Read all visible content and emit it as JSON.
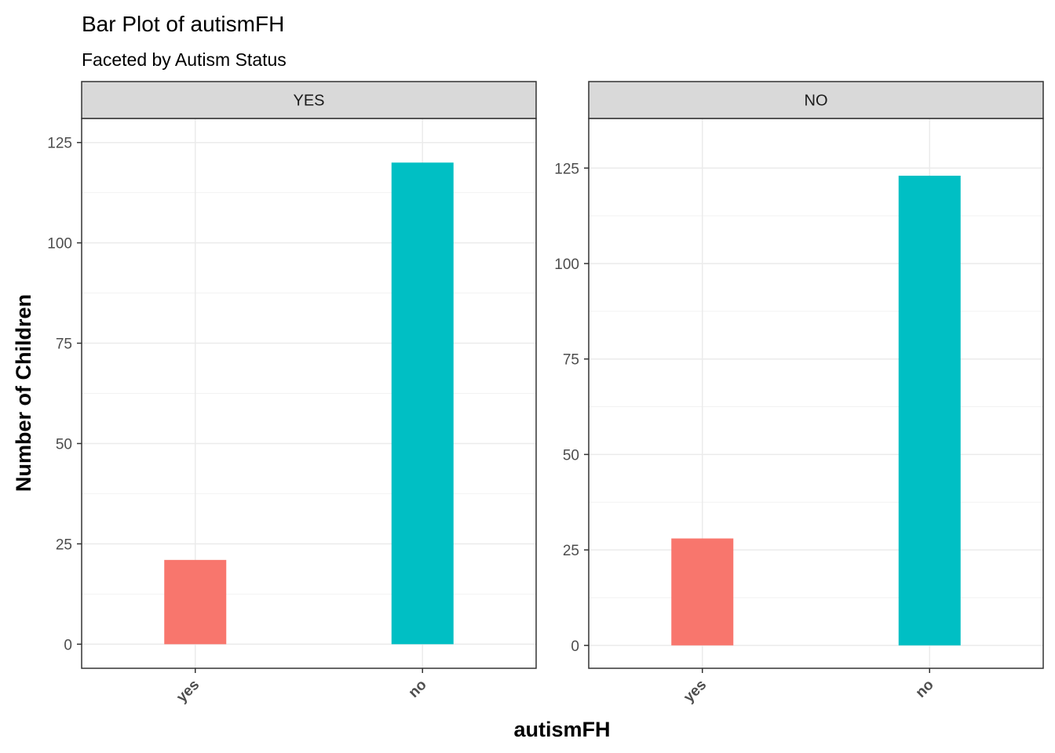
{
  "chart_data": {
    "type": "bar",
    "title": "Bar Plot of autismFH",
    "subtitle": "Faceted by Autism Status",
    "xlabel": "autismFH",
    "ylabel": "Number of Children",
    "categories": [
      "yes",
      "no"
    ],
    "colors": {
      "yes": "#F8766D",
      "no": "#00BFC4"
    },
    "grid": true,
    "facets": [
      {
        "label": "YES",
        "values": [
          21,
          120
        ],
        "ylim": [
          -6,
          131
        ],
        "yticks": [
          0,
          25,
          50,
          75,
          100,
          125
        ]
      },
      {
        "label": "NO",
        "values": [
          28,
          123
        ],
        "ylim": [
          -6,
          138
        ],
        "yticks": [
          0,
          25,
          50,
          75,
          100,
          125
        ]
      }
    ]
  }
}
